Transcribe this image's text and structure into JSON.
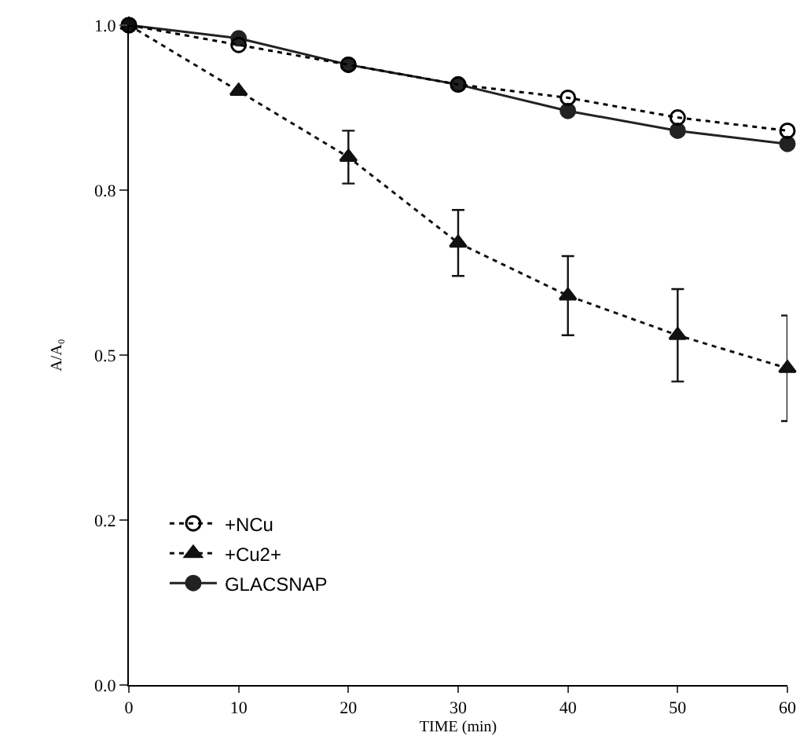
{
  "chart_data": {
    "type": "line",
    "xlabel": "TIME (min)",
    "ylabel": "A/A₀",
    "x": [
      0,
      10,
      20,
      30,
      40,
      50,
      60
    ],
    "series": [
      {
        "name": "+NCu",
        "color": "#000000",
        "marker": "circle-open",
        "line_style": "dotted",
        "values": [
          1.0,
          0.97,
          0.94,
          0.91,
          0.89,
          0.86,
          0.84
        ]
      },
      {
        "name": "+Cu2+",
        "color": "#111111",
        "marker": "triangle",
        "line_style": "dotted",
        "values": [
          1.0,
          0.9,
          0.8,
          0.67,
          0.59,
          0.53,
          0.48
        ],
        "errors": [
          null,
          null,
          0.04,
          0.05,
          0.06,
          0.07,
          0.08
        ]
      },
      {
        "name": "GLACSNAP",
        "color": "#222222",
        "marker": "circle",
        "line_style": "solid",
        "values": [
          1.0,
          0.98,
          0.94,
          0.91,
          0.87,
          0.84,
          0.82
        ]
      }
    ],
    "xlim": [
      0,
      60
    ],
    "xticks": [
      0,
      10,
      20,
      30,
      40,
      50,
      60
    ],
    "ylim": [
      0,
      1.0
    ],
    "yticks": [
      {
        "value": 0,
        "label": "0.0"
      },
      {
        "value": 0.25,
        "label": "0.2"
      },
      {
        "value": 0.5,
        "label": "0.5"
      },
      {
        "value": 0.75,
        "label": "0.8"
      },
      {
        "value": 1.0,
        "label": "1.0"
      }
    ],
    "grid": false,
    "legend": "bottom left"
  }
}
